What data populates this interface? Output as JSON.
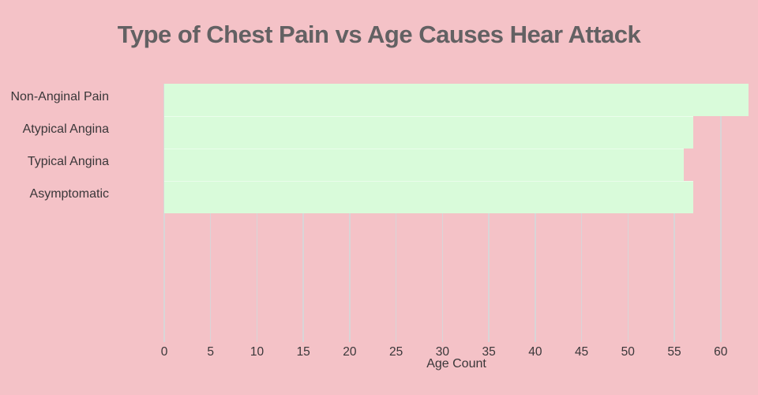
{
  "colors": {
    "background": "#f4c2c7",
    "bar_fill": "#d9fbda",
    "title_text": "#636163",
    "axis_text": "#3a3739",
    "gridline": "#d9d5d7"
  },
  "chart_data": {
    "type": "bar",
    "orientation": "horizontal",
    "title": "Type of Chest Pain vs Age Causes Hear Attack",
    "xlabel": "Age Count",
    "ylabel": "",
    "categories": [
      "Non-Anginal Pain",
      "Atypical Angina",
      "Typical Angina",
      "Asymptomatic"
    ],
    "values": [
      63,
      57,
      56,
      57
    ],
    "xlim": [
      0,
      63
    ],
    "xticks": [
      0,
      5,
      10,
      15,
      20,
      25,
      30,
      35,
      40,
      45,
      50,
      55,
      60
    ],
    "grid": true,
    "legend": false
  }
}
